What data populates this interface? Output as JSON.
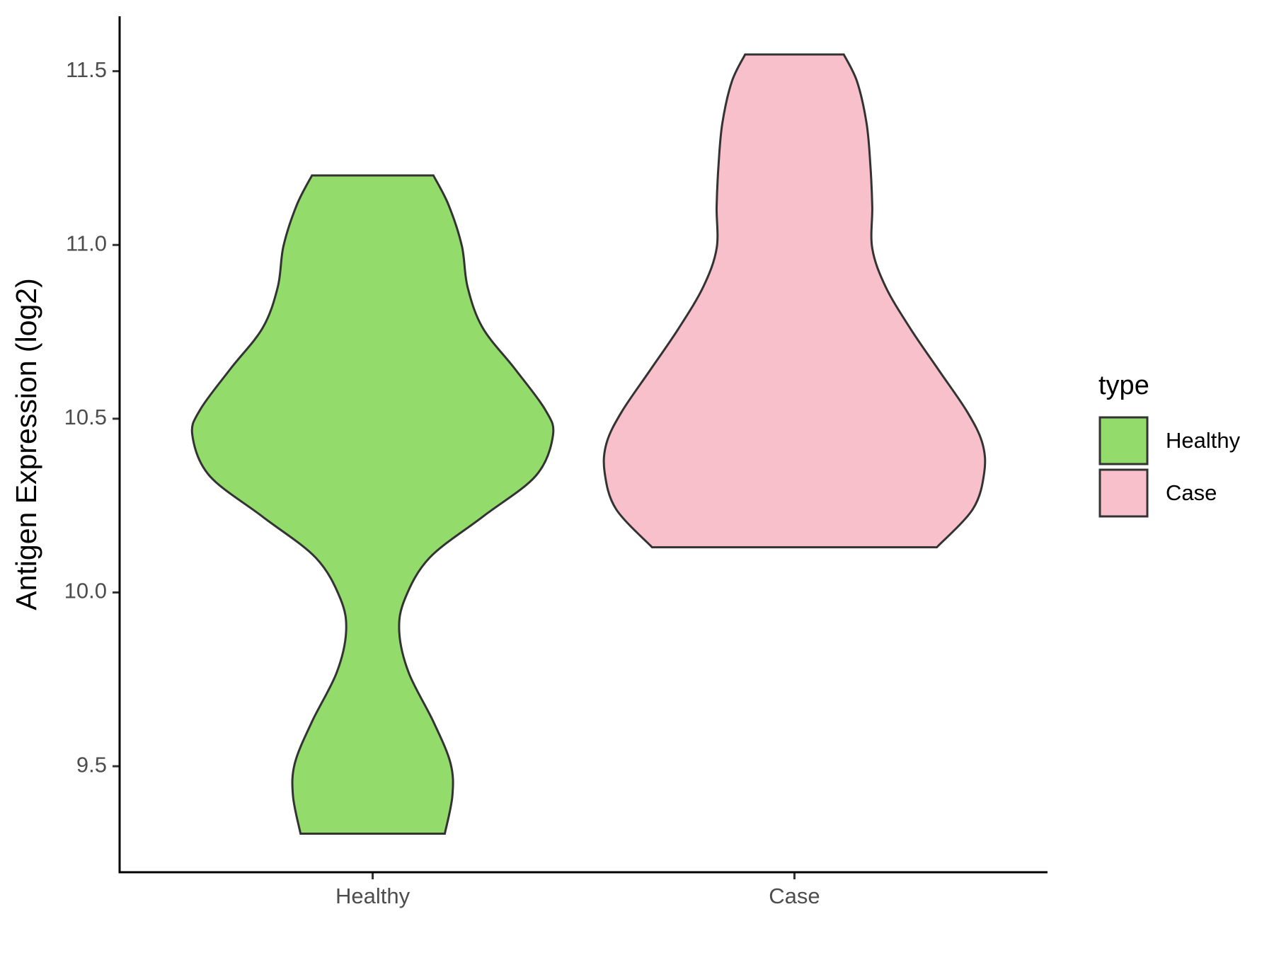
{
  "chart_data": {
    "type": "violin",
    "ylabel": "Antigen Expression (log2)",
    "categories": [
      "Healthy",
      "Case"
    ],
    "ylim": [
      9.195,
      11.658
    ],
    "yticks": [
      9.5,
      {
        "value": 10,
        "label": "10.0"
      },
      10.5,
      {
        "value": 11,
        "label": "11.0"
      },
      11.5
    ],
    "legend_title": "type",
    "legend_position": "right",
    "series": [
      {
        "name": "Healthy",
        "color": "#93dc6b",
        "y": [
          11.2,
          11.115,
          10.997,
          10.879,
          10.761,
          10.643,
          10.525,
          10.452,
          10.336,
          10.218,
          10.1,
          9.982,
          9.887,
          9.769,
          9.628,
          9.509,
          9.415,
          9.306
        ],
        "density": [
          0.32,
          0.4,
          0.47,
          0.5,
          0.58,
          0.75,
          0.91,
          0.95,
          0.86,
          0.58,
          0.3,
          0.17,
          0.14,
          0.19,
          0.32,
          0.41,
          0.42,
          0.38
        ]
      },
      {
        "name": "Case",
        "color": "#f7c0cb",
        "y": [
          11.548,
          11.47,
          11.35,
          11.23,
          11.11,
          10.99,
          10.88,
          10.76,
          10.64,
          10.52,
          10.43,
          10.345,
          10.24,
          10.13
        ],
        "density": [
          0.26,
          0.33,
          0.38,
          0.4,
          0.41,
          0.41,
          0.48,
          0.61,
          0.76,
          0.91,
          0.99,
          1.0,
          0.94,
          0.75
        ]
      }
    ]
  }
}
